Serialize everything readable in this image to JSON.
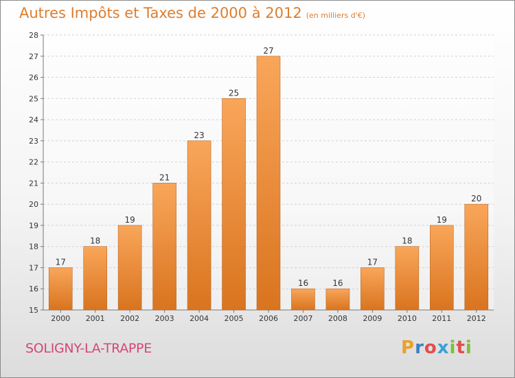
{
  "header": {
    "title": "Autres Impôts et Taxes de 2000 à 2012",
    "subtitle": "(en milliers d'€)"
  },
  "footer": {
    "city": "SOLIGNY-LA-TRAPPE",
    "logo": "Proxiti"
  },
  "colors": {
    "bar_top": "#f9a65a",
    "bar_bottom": "#d9741f",
    "bar_border": "#b96a2a",
    "title": "#dd7d2d",
    "city": "#d6457a"
  },
  "chart_data": {
    "type": "bar",
    "title": "Autres Impôts et Taxes de 2000 à 2012",
    "subtitle": "(en milliers d'€)",
    "categories": [
      "2000",
      "2001",
      "2002",
      "2003",
      "2004",
      "2005",
      "2006",
      "2007",
      "2008",
      "2009",
      "2010",
      "2011",
      "2012"
    ],
    "values": [
      17,
      18,
      19,
      21,
      23,
      25,
      27,
      16,
      16,
      17,
      18,
      19,
      20
    ],
    "xlabel": "",
    "ylabel": "",
    "ylim": [
      15,
      28
    ],
    "yticks": [
      15,
      16,
      17,
      18,
      19,
      20,
      21,
      22,
      23,
      24,
      25,
      26,
      27,
      28
    ],
    "grid": true,
    "data_labels": true
  }
}
